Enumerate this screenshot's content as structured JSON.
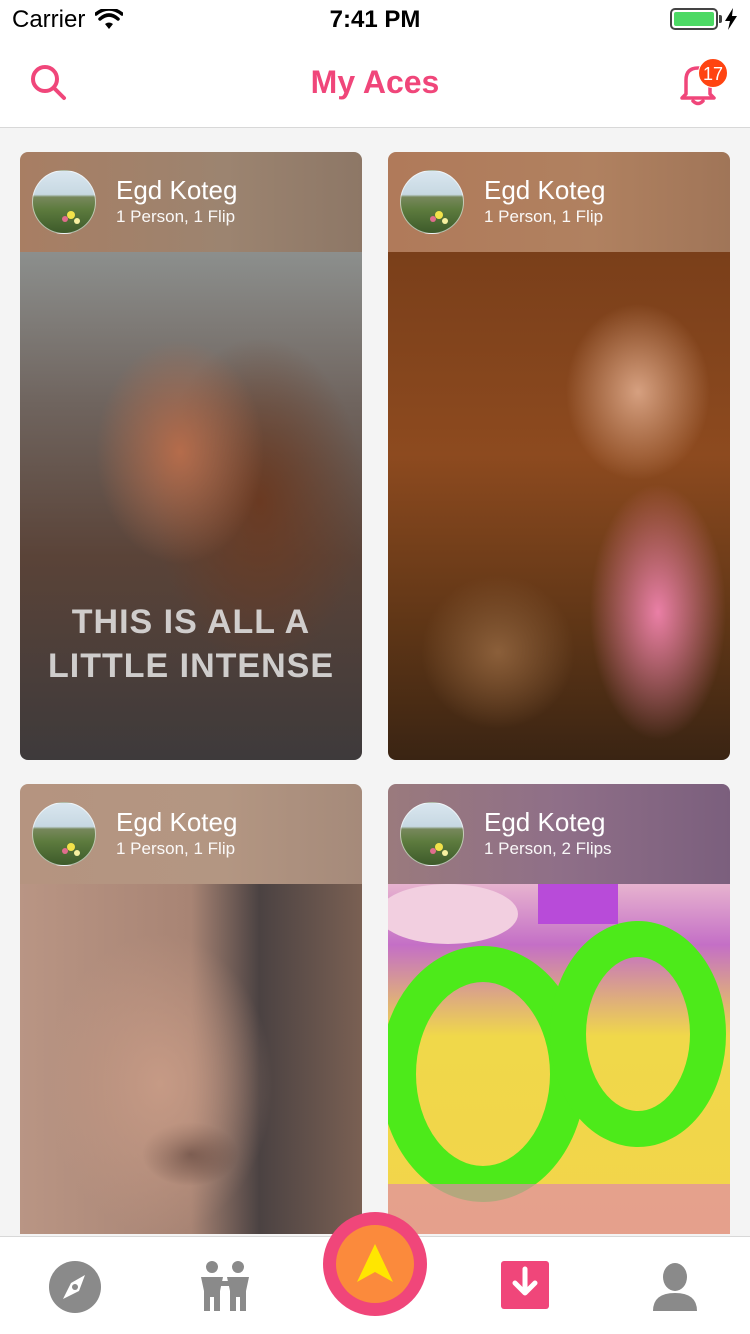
{
  "status_bar": {
    "carrier": "Carrier",
    "time": "7:41 PM"
  },
  "nav": {
    "title": "My Aces",
    "notification_count": "17"
  },
  "cards": [
    {
      "name": "Egd Koteg",
      "subtitle": "1 Person, 1 Flip",
      "overlay_line1": "THIS IS ALL A",
      "overlay_line2": "LITTLE INTENSE"
    },
    {
      "name": "Egd Koteg",
      "subtitle": "1 Person, 1 Flip"
    },
    {
      "name": "Egd Koteg",
      "subtitle": "1 Person, 1 Flip"
    },
    {
      "name": "Egd Koteg",
      "subtitle": "1 Person, 2 Flips"
    }
  ],
  "tabs": {
    "discover_icon": "compass-icon",
    "people_icon": "people-icon",
    "center_icon": "arrow-up-icon",
    "aces_icon": "download-box-icon",
    "profile_icon": "person-icon"
  },
  "colors": {
    "accent": "#f0467a",
    "center_inner": "#fb8a3c",
    "arrow": "#ffe600",
    "badge": "#ff4411"
  }
}
